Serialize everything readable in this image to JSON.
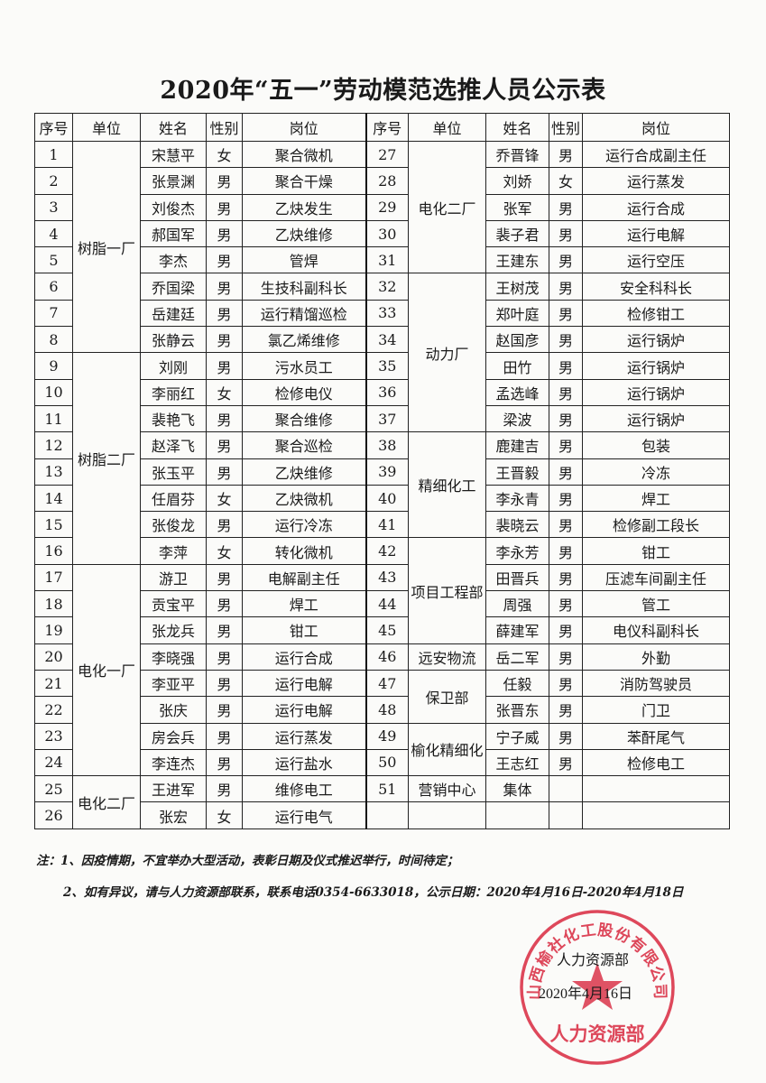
{
  "title": "2020年“五一”劳动模范选推人员公示表",
  "headers": [
    "序号",
    "单位",
    "姓名",
    "性别",
    "岗位"
  ],
  "left": [
    {
      "unit": "树脂一厂",
      "rows": [
        [
          "1",
          "宋慧平",
          "女",
          "聚合微机"
        ],
        [
          "2",
          "张景渊",
          "男",
          "聚合干燥"
        ],
        [
          "3",
          "刘俊杰",
          "男",
          "乙炔发生"
        ],
        [
          "4",
          "郝国军",
          "男",
          "乙炔维修"
        ],
        [
          "5",
          "李杰",
          "男",
          "管焊"
        ],
        [
          "6",
          "乔国梁",
          "男",
          "生技科副科长"
        ],
        [
          "7",
          "岳建廷",
          "男",
          "运行精馏巡检"
        ],
        [
          "8",
          "张静云",
          "男",
          "氯乙烯维修"
        ]
      ]
    },
    {
      "unit": "树脂二厂",
      "rows": [
        [
          "9",
          "刘刚",
          "男",
          "污水员工"
        ],
        [
          "10",
          "李丽红",
          "女",
          "检修电仪"
        ],
        [
          "11",
          "裴艳飞",
          "男",
          "聚合维修"
        ],
        [
          "12",
          "赵泽飞",
          "男",
          "聚合巡检"
        ],
        [
          "13",
          "张玉平",
          "男",
          "乙炔维修"
        ],
        [
          "14",
          "任眉芬",
          "女",
          "乙炔微机"
        ],
        [
          "15",
          "张俊龙",
          "男",
          "运行冷冻"
        ],
        [
          "16",
          "李萍",
          "女",
          "转化微机"
        ]
      ]
    },
    {
      "unit": "电化一厂",
      "rows": [
        [
          "17",
          "游卫",
          "男",
          "电解副主任"
        ],
        [
          "18",
          "贡宝平",
          "男",
          "焊工"
        ],
        [
          "19",
          "张龙兵",
          "男",
          "钳工"
        ],
        [
          "20",
          "李晓强",
          "男",
          "运行合成"
        ],
        [
          "21",
          "李亚平",
          "男",
          "运行电解"
        ],
        [
          "22",
          "张庆",
          "男",
          "运行电解"
        ],
        [
          "23",
          "房会兵",
          "男",
          "运行蒸发"
        ],
        [
          "24",
          "李连杰",
          "男",
          "运行盐水"
        ]
      ]
    },
    {
      "unit": "电化二厂",
      "rows": [
        [
          "25",
          "王进军",
          "男",
          "维修电工"
        ],
        [
          "26",
          "张宏",
          "女",
          "运行电气"
        ]
      ]
    }
  ],
  "right": [
    {
      "unit": "电化二厂",
      "rows": [
        [
          "27",
          "乔晋锋",
          "男",
          "运行合成副主任"
        ],
        [
          "28",
          "刘娇",
          "女",
          "运行蒸发"
        ],
        [
          "29",
          "张军",
          "男",
          "运行合成"
        ],
        [
          "30",
          "裴子君",
          "男",
          "运行电解"
        ],
        [
          "31",
          "王建东",
          "男",
          "运行空压"
        ]
      ]
    },
    {
      "unit": "动力厂",
      "rows": [
        [
          "32",
          "王树茂",
          "男",
          "安全科科长"
        ],
        [
          "33",
          "郑叶庭",
          "男",
          "检修钳工"
        ],
        [
          "34",
          "赵国彦",
          "男",
          "运行锅炉"
        ],
        [
          "35",
          "田竹",
          "男",
          "运行锅炉"
        ],
        [
          "36",
          "孟选峰",
          "男",
          "运行锅炉"
        ],
        [
          "37",
          "梁波",
          "男",
          "运行锅炉"
        ]
      ]
    },
    {
      "unit": "精细化工",
      "rows": [
        [
          "38",
          "鹿建吉",
          "男",
          "包装"
        ],
        [
          "39",
          "王晋毅",
          "男",
          "冷冻"
        ],
        [
          "40",
          "李永青",
          "男",
          "焊工"
        ],
        [
          "41",
          "裴晓云",
          "男",
          "检修副工段长"
        ]
      ]
    },
    {
      "unit": "项目工程部",
      "rows": [
        [
          "42",
          "李永芳",
          "男",
          "钳工"
        ],
        [
          "43",
          "田晋兵",
          "男",
          "压滤车间副主任"
        ],
        [
          "44",
          "周强",
          "男",
          "管工"
        ],
        [
          "45",
          "薛建军",
          "男",
          "电仪科副科长"
        ]
      ]
    },
    {
      "unit": "远安物流",
      "rows": [
        [
          "46",
          "岳二军",
          "男",
          "外勤"
        ]
      ]
    },
    {
      "unit": "保卫部",
      "rows": [
        [
          "47",
          "任毅",
          "男",
          "消防驾驶员"
        ],
        [
          "48",
          "张晋东",
          "男",
          "门卫"
        ]
      ]
    },
    {
      "unit": "榆化精细化",
      "rows": [
        [
          "49",
          "宁子威",
          "男",
          "苯酐尾气"
        ],
        [
          "50",
          "王志红",
          "男",
          "检修电工"
        ]
      ]
    },
    {
      "unit": "营销中心",
      "rows": [
        [
          "51",
          "集体",
          "",
          ""
        ]
      ]
    },
    {
      "unit": "",
      "rows": [
        [
          "",
          "",
          "",
          ""
        ]
      ]
    }
  ],
  "notes": [
    "注：1、因疫情期，不宜举办大型活动，表彰日期及仪式推迟举行，时间待定；",
    "2、如有异议，请与人力资源部联系，联系电话0354-6633018，公示日期：2020年4月16日-2020年4月18日"
  ],
  "signature": {
    "department": "人力资源部",
    "date": "2020年4月16日"
  },
  "stamp": {
    "ring_text": "山西榆社化工股份有限公司",
    "center_text": "人力资源部",
    "color": "#d8283f"
  }
}
